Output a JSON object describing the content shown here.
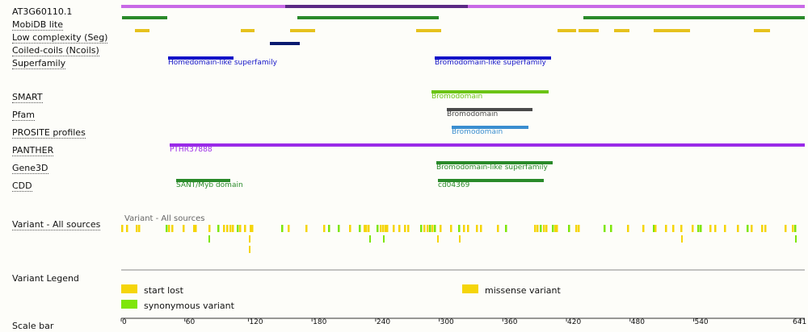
{
  "protein_title": "AT3G60110.1",
  "colors": {
    "protein_light": "#c869e6",
    "protein_dark": "#5c2a85",
    "mobidb": "#2a8a2a",
    "low_complexity": "#e6c21e",
    "coiled": "#0a1a70",
    "superfamily": "#1414c8",
    "smart": "#6cc416",
    "pfam": "#4a4a4a",
    "prosite": "#3a8ed0",
    "panther": "#9a2ae8",
    "gene3d": "#2a8a2a",
    "cdd": "#2a8a2a",
    "variant_start_lost": "#f5d50a",
    "variant_missense": "#f5d50a",
    "variant_synonymous": "#7ee60a"
  },
  "tracks": {
    "mobidb": "MobiDB lite",
    "low_complexity": "Low complexity (Seg)",
    "coiled": "Coiled-coils (Ncoils)",
    "superfamily": "Superfamily",
    "smart": "SMART",
    "pfam": "Pfam",
    "prosite": "PROSITE profiles",
    "panther": "PANTHER",
    "gene3d": "Gene3D",
    "cdd": "CDD",
    "variants": "Variant - All sources",
    "legend": "Variant Legend",
    "scale": "Scale bar"
  },
  "features": {
    "superfamily_1": "Homedomain-like superfamily",
    "superfamily_2": "Bromodomain-like superfamily",
    "smart_1": "Bromodomain",
    "pfam_1": "Bromodomain",
    "prosite_1": "Bromodomain",
    "panther_1": "PTHR37888",
    "gene3d_1": "Bromodomain-like superfamily",
    "cdd_1": "SANT/Myb domain",
    "cdd_2": "cd04369",
    "variant_track_label": "Variant - All sources"
  },
  "legend": {
    "start_lost": "start lost",
    "missense": "missense variant",
    "synonymous": "synonymous variant"
  },
  "scale": {
    "length": 641,
    "ticks": [
      "0",
      "60",
      "120",
      "180",
      "240",
      "300",
      "360",
      "420",
      "480",
      "540",
      "641"
    ]
  }
}
